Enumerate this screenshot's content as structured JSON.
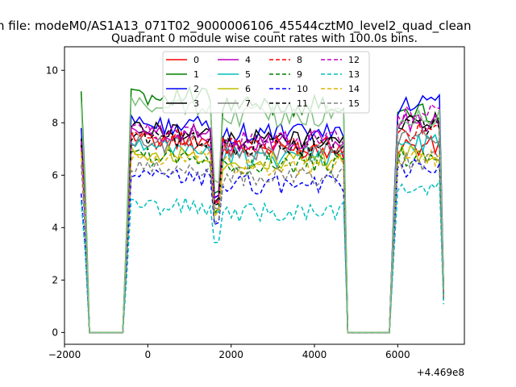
{
  "chart_data": {
    "type": "line",
    "suptitle": "n file: modeM0/AS1A13_071T02_9000006106_45544cztM0_level2_quad_clean",
    "title": "Quadrant 0 module wise count rates with 100.0s bins.",
    "xlabel": "",
    "ylabel": "",
    "offset_label": "+4.469e8",
    "xlim": [
      -2000,
      7600
    ],
    "ylim": [
      -0.45,
      10.9
    ],
    "xticks": [
      -2000,
      0,
      2000,
      4000,
      6000
    ],
    "xtick_labels": [
      "−2000",
      "0",
      "2000",
      "4000",
      "6000"
    ],
    "yticks": [
      0,
      2,
      4,
      6,
      8,
      10
    ],
    "ytick_labels": [
      "0",
      "2",
      "4",
      "6",
      "8",
      "10"
    ],
    "grid": false,
    "legend_position": "upper-center",
    "segments": [
      {
        "from": -1600,
        "to": -1400,
        "ramp": "down"
      },
      {
        "from": -1400,
        "to": -600,
        "ramp": "zero"
      },
      {
        "from": -600,
        "to": 1550,
        "ramp": "up"
      },
      {
        "from": 1550,
        "to": 1750,
        "ramp": "dip"
      },
      {
        "from": 1750,
        "to": 4700,
        "ramp": "flat"
      },
      {
        "from": 4700,
        "to": 4800,
        "ramp": "down"
      },
      {
        "from": 4800,
        "to": 5800,
        "ramp": "zero"
      },
      {
        "from": 5800,
        "to": 7100,
        "ramp": "up"
      }
    ],
    "series": [
      {
        "name": "0",
        "color": "#ff0000",
        "dash": "solid",
        "level": 7.3,
        "start": 7.2,
        "end": 7.1,
        "dip": 5.2
      },
      {
        "name": "1",
        "color": "#008000",
        "dash": "solid",
        "level": 9.0,
        "start": 9.2,
        "end": 8.4,
        "dip": 5.3
      },
      {
        "name": "2",
        "color": "#0000ff",
        "dash": "solid",
        "level": 7.9,
        "start": 7.8,
        "end": 8.7,
        "dip": 5.1
      },
      {
        "name": "3",
        "color": "#000000",
        "dash": "solid",
        "level": 7.7,
        "start": 7.4,
        "end": 8.1,
        "dip": 5.0
      },
      {
        "name": "4",
        "color": "#bf00bf",
        "dash": "solid",
        "level": 7.6,
        "start": 7.3,
        "end": 8.0,
        "dip": 4.9
      },
      {
        "name": "5",
        "color": "#00bfbf",
        "dash": "solid",
        "level": 7.0,
        "start": 7.0,
        "end": 7.2,
        "dip": 4.5
      },
      {
        "name": "6",
        "color": "#bfbf00",
        "dash": "solid",
        "level": 6.8,
        "start": 7.0,
        "end": 6.9,
        "dip": 4.6
      },
      {
        "name": "7",
        "color": "#808080",
        "dash": "solid",
        "level": 7.2,
        "start": 7.1,
        "end": 7.4,
        "dip": 4.8
      },
      {
        "name": "8",
        "color": "#ff0000",
        "dash": "dashed",
        "level": 7.4,
        "start": 7.2,
        "end": 7.6,
        "dip": 4.9
      },
      {
        "name": "9",
        "color": "#008000",
        "dash": "dashed",
        "level": 6.7,
        "start": 6.9,
        "end": 6.7,
        "dip": 4.6
      },
      {
        "name": "10",
        "color": "#0000ff",
        "dash": "dashed",
        "level": 5.9,
        "start": 5.3,
        "end": 6.2,
        "dip": 4.2
      },
      {
        "name": "11",
        "color": "#000000",
        "dash": "dashed",
        "level": 7.4,
        "start": 7.2,
        "end": 7.9,
        "dip": 4.9
      },
      {
        "name": "12",
        "color": "#bf00bf",
        "dash": "dashed",
        "level": 7.6,
        "start": 7.3,
        "end": 8.3,
        "dip": 5.0
      },
      {
        "name": "13",
        "color": "#00bfbf",
        "dash": "dashed",
        "level": 4.8,
        "start": 5.0,
        "end": 5.4,
        "dip": 3.3
      },
      {
        "name": "14",
        "color": "#dfb300",
        "dash": "dashed",
        "level": 6.6,
        "start": 6.9,
        "end": 6.7,
        "dip": 4.5
      },
      {
        "name": "15",
        "color": "#808080",
        "dash": "dashed",
        "level": 6.2,
        "start": 6.4,
        "end": 6.5,
        "dip": 4.3
      },
      {
        "name": "",
        "color": "#7fbf7f",
        "dash": "solid",
        "level": 8.6,
        "start": 8.8,
        "end": 8.2,
        "dip": 5.7,
        "nolegend": true
      }
    ]
  }
}
